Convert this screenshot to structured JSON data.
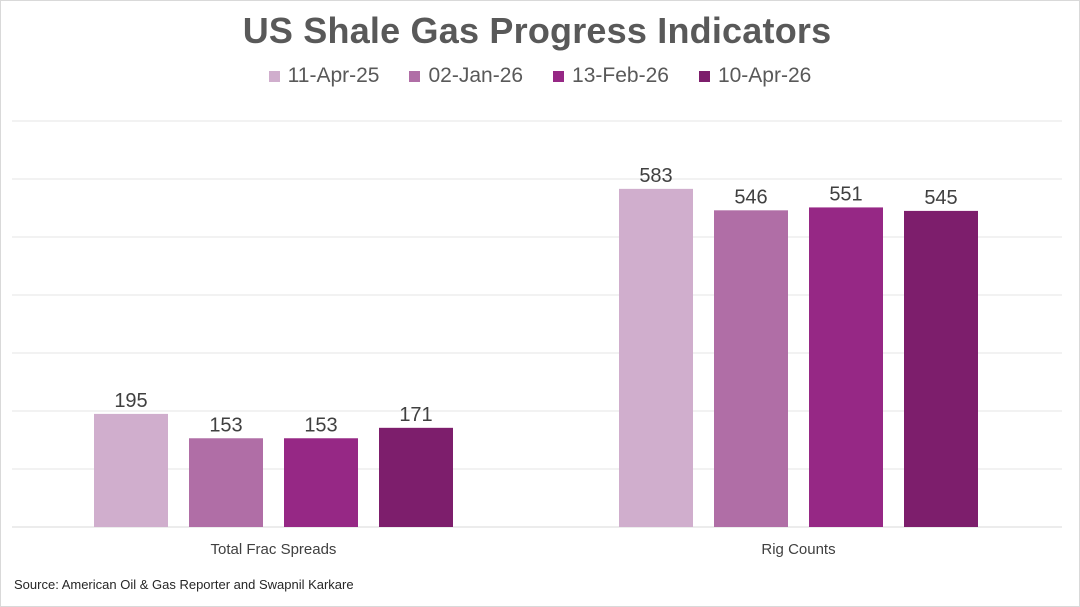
{
  "chart_data": {
    "type": "bar",
    "title": "US Shale Gas Progress Indicators",
    "categories": [
      "Total Frac Spreads",
      "Rig Counts"
    ],
    "series": [
      {
        "name": "11-Apr-25",
        "color": "#d0aecd",
        "values": [
          195,
          583
        ]
      },
      {
        "name": "02-Jan-26",
        "color": "#b06ea6",
        "values": [
          153,
          546
        ]
      },
      {
        "name": "13-Feb-26",
        "color": "#962885",
        "values": [
          153,
          551
        ]
      },
      {
        "name": "10-Apr-26",
        "color": "#7d1e6c",
        "values": [
          171,
          545
        ]
      }
    ],
    "xlabel": "",
    "ylabel": "",
    "ylim": [
      0,
      700
    ],
    "grid": true,
    "legend_position": "top",
    "data_labels": true,
    "source": "Source: American Oil & Gas Reporter and Swapnil Karkare"
  }
}
